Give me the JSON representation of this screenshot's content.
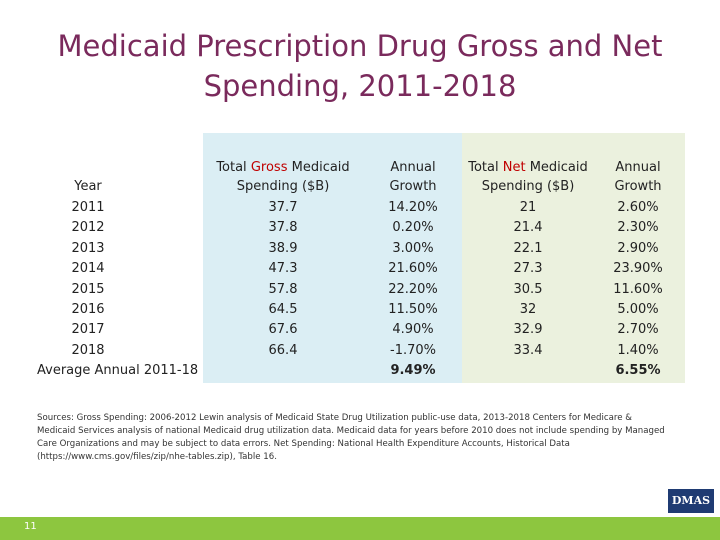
{
  "title": "Medicaid Prescription Drug Gross and Net Spending, 2011-2018",
  "table": {
    "headers": [
      {
        "text": "Year"
      },
      {
        "before": "Total",
        "highlight": "Gross",
        "after": "Medicaid Spending ($B)"
      },
      {
        "text": "Annual Growth"
      },
      {
        "before": "Total",
        "highlight": "Net",
        "after": "Medicaid Spending ($B)"
      },
      {
        "text": "Annual Growth"
      }
    ],
    "rows": [
      [
        "2011",
        "37.7",
        "14.20%",
        "21",
        "2.60%"
      ],
      [
        "2012",
        "37.8",
        "0.20%",
        "21.4",
        "2.30%"
      ],
      [
        "2013",
        "38.9",
        "3.00%",
        "22.1",
        "2.90%"
      ],
      [
        "2014",
        "47.3",
        "21.60%",
        "27.3",
        "23.90%"
      ],
      [
        "2015",
        "57.8",
        "22.20%",
        "30.5",
        "11.60%"
      ],
      [
        "2016",
        "64.5",
        "11.50%",
        "32",
        "5.00%"
      ],
      [
        "2017",
        "67.6",
        "4.90%",
        "32.9",
        "2.70%"
      ],
      [
        "2018",
        "66.4",
        "-1.70%",
        "33.4",
        "1.40%"
      ],
      [
        "Average Annual 2011-18",
        null,
        "9.49%",
        null,
        "6.55%"
      ]
    ]
  },
  "sources": "Sources: Gross Spending: 2006-2012 Lewin analysis of Medicaid State Drug Utilization public-use data, 2013-2018 Centers for Medicare & Medicaid Services analysis of national Medicaid drug utilization data. Medicaid data for years before 2010 does not include spending by Managed Care Organizations and may be subject to data errors. Net Spending: National Health Expenditure Accounts, Historical Data (https://www.cms.gov/files/zip/nhe-tables.zip), Table 16.",
  "logo": "DMAS",
  "page_number": "11"
}
